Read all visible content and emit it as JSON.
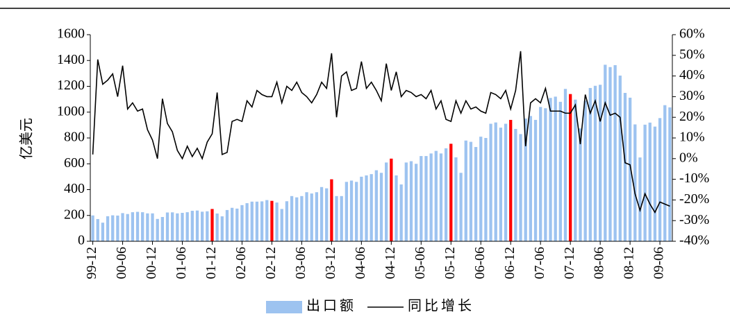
{
  "chart_data": {
    "type": "bar-line",
    "y_label": "亿美元",
    "categories": [
      "99-12",
      null,
      null,
      null,
      null,
      null,
      "00-06",
      null,
      null,
      null,
      null,
      null,
      "00-12",
      null,
      null,
      null,
      null,
      null,
      "01-06",
      null,
      null,
      null,
      null,
      null,
      "01-12",
      null,
      null,
      null,
      null,
      null,
      "02-06",
      null,
      null,
      null,
      null,
      null,
      "02-12",
      null,
      null,
      null,
      null,
      null,
      "03-06",
      null,
      null,
      null,
      null,
      null,
      "03-12",
      null,
      null,
      null,
      null,
      null,
      "04-06",
      null,
      null,
      null,
      null,
      null,
      "04-12",
      null,
      null,
      null,
      null,
      null,
      "05-06",
      null,
      null,
      null,
      null,
      null,
      "05-12",
      null,
      null,
      null,
      null,
      null,
      "06-06",
      null,
      null,
      null,
      null,
      null,
      "06-12",
      null,
      null,
      null,
      null,
      null,
      "07-06",
      null,
      null,
      null,
      null,
      null,
      "07-12",
      null,
      null,
      null,
      null,
      null,
      "08-06",
      null,
      null,
      null,
      null,
      null,
      "08-12",
      null,
      null,
      null,
      null,
      null,
      "09-06",
      null,
      null
    ],
    "series": [
      {
        "name": "出口额",
        "type": "bar",
        "color": "#9dc3f0",
        "values": [
          200,
          172,
          144,
          194,
          201,
          199,
          218,
          211,
          225,
          228,
          225,
          216,
          216,
          173,
          188,
          223,
          224,
          216,
          220,
          225,
          236,
          238,
          229,
          232,
          250,
          215,
          193,
          242,
          259,
          253,
          280,
          295,
          307,
          307,
          309,
          319,
          313,
          300,
          250,
          310,
          350,
          340,
          350,
          380,
          370,
          380,
          420,
          410,
          480,
          350,
          350,
          460,
          470,
          460,
          500,
          510,
          520,
          550,
          530,
          610,
          640,
          510,
          440,
          610,
          620,
          600,
          660,
          660,
          680,
          700,
          680,
          720,
          755,
          650,
          530,
          780,
          770,
          730,
          810,
          800,
          910,
          920,
          880,
          910,
          940,
          870,
          830,
          950,
          970,
          940,
          1040,
          1030,
          1110,
          1120,
          1080,
          1180,
          1140,
          1097,
          874,
          1089,
          1187,
          1204,
          1212,
          1367,
          1349,
          1364,
          1283,
          1149,
          1112,
          905,
          649,
          903,
          919,
          888,
          954,
          1054,
          1037
        ],
        "colors": [
          "#9dc3f0",
          "#9dc3f0",
          "#9dc3f0",
          "#9dc3f0",
          "#9dc3f0",
          "#9dc3f0",
          "#9dc3f0",
          "#9dc3f0",
          "#9dc3f0",
          "#9dc3f0",
          "#9dc3f0",
          "#9dc3f0",
          "#9dc3f0",
          "#9dc3f0",
          "#9dc3f0",
          "#9dc3f0",
          "#9dc3f0",
          "#9dc3f0",
          "#9dc3f0",
          "#9dc3f0",
          "#9dc3f0",
          "#9dc3f0",
          "#9dc3f0",
          "#9dc3f0",
          "#ff0000",
          "#9dc3f0",
          "#9dc3f0",
          "#9dc3f0",
          "#9dc3f0",
          "#9dc3f0",
          "#9dc3f0",
          "#9dc3f0",
          "#9dc3f0",
          "#9dc3f0",
          "#9dc3f0",
          "#9dc3f0",
          "#ff0000",
          "#9dc3f0",
          "#9dc3f0",
          "#9dc3f0",
          "#9dc3f0",
          "#9dc3f0",
          "#9dc3f0",
          "#9dc3f0",
          "#9dc3f0",
          "#9dc3f0",
          "#9dc3f0",
          "#9dc3f0",
          "#ff0000",
          "#9dc3f0",
          "#9dc3f0",
          "#9dc3f0",
          "#9dc3f0",
          "#9dc3f0",
          "#9dc3f0",
          "#9dc3f0",
          "#9dc3f0",
          "#9dc3f0",
          "#9dc3f0",
          "#9dc3f0",
          "#ff0000",
          "#9dc3f0",
          "#9dc3f0",
          "#9dc3f0",
          "#9dc3f0",
          "#9dc3f0",
          "#9dc3f0",
          "#9dc3f0",
          "#9dc3f0",
          "#9dc3f0",
          "#9dc3f0",
          "#9dc3f0",
          "#ff0000",
          "#9dc3f0",
          "#9dc3f0",
          "#9dc3f0",
          "#9dc3f0",
          "#9dc3f0",
          "#9dc3f0",
          "#9dc3f0",
          "#9dc3f0",
          "#9dc3f0",
          "#9dc3f0",
          "#9dc3f0",
          "#ff0000",
          "#9dc3f0",
          "#9dc3f0",
          "#9dc3f0",
          "#9dc3f0",
          "#9dc3f0",
          "#9dc3f0",
          "#9dc3f0",
          "#9dc3f0",
          "#9dc3f0",
          "#9dc3f0",
          "#9dc3f0",
          "#ff0000",
          "#9dc3f0",
          "#9dc3f0",
          "#9dc3f0",
          "#9dc3f0",
          "#9dc3f0",
          "#9dc3f0",
          "#9dc3f0",
          "#9dc3f0",
          "#9dc3f0",
          "#9dc3f0",
          "#9dc3f0",
          "#9dc3f0",
          "#9dc3f0",
          "#9dc3f0",
          "#9dc3f0",
          "#9dc3f0",
          "#9dc3f0",
          "#9dc3f0",
          "#9dc3f0",
          "#9dc3f0"
        ]
      },
      {
        "name": "同比增长",
        "type": "line",
        "color": "#000000",
        "axis": "y2",
        "values": [
          2,
          48,
          36,
          38,
          41,
          30,
          45,
          24,
          27,
          23,
          24,
          14,
          9,
          0,
          29,
          17,
          13,
          4,
          0,
          6,
          1,
          5,
          0,
          8,
          12,
          32,
          2,
          3,
          18,
          19,
          18,
          28,
          25,
          33,
          31,
          30,
          30,
          37,
          27,
          35,
          33,
          37,
          32,
          30,
          27,
          31,
          37,
          34,
          51,
          20,
          40,
          42,
          33,
          34,
          47,
          34,
          37,
          33,
          28,
          46,
          33,
          42,
          30,
          33,
          32,
          30,
          31,
          29,
          33,
          24,
          28,
          19,
          18,
          28,
          22,
          28,
          24,
          25,
          23,
          22,
          32,
          31,
          29,
          33,
          24,
          33,
          52,
          6,
          27,
          29,
          27,
          34,
          23,
          23,
          23,
          22,
          22,
          26,
          7,
          31,
          22,
          28,
          18,
          27,
          21,
          22,
          20,
          -2,
          -3,
          -17,
          -25,
          -17,
          -22,
          -26,
          -21,
          -22,
          -23
        ]
      }
    ],
    "ylim": [
      0,
      1600
    ],
    "yticks": [
      0,
      200,
      400,
      600,
      800,
      1000,
      1200,
      1400,
      1600
    ],
    "y2lim": [
      -40,
      60
    ],
    "y2ticks": [
      {
        "value": -40,
        "label": "-40%"
      },
      {
        "value": -30,
        "label": "-30%"
      },
      {
        "value": -20,
        "label": "-20%"
      },
      {
        "value": -10,
        "label": "-10%"
      },
      {
        "value": 0,
        "label": "0%"
      },
      {
        "value": 10,
        "label": "10%"
      },
      {
        "value": 20,
        "label": "20%"
      },
      {
        "value": 30,
        "label": "30%"
      },
      {
        "value": 40,
        "label": "40%"
      },
      {
        "value": 50,
        "label": "50%"
      },
      {
        "value": 60,
        "label": "60%"
      }
    ],
    "grid": false,
    "legend": "bottom"
  }
}
